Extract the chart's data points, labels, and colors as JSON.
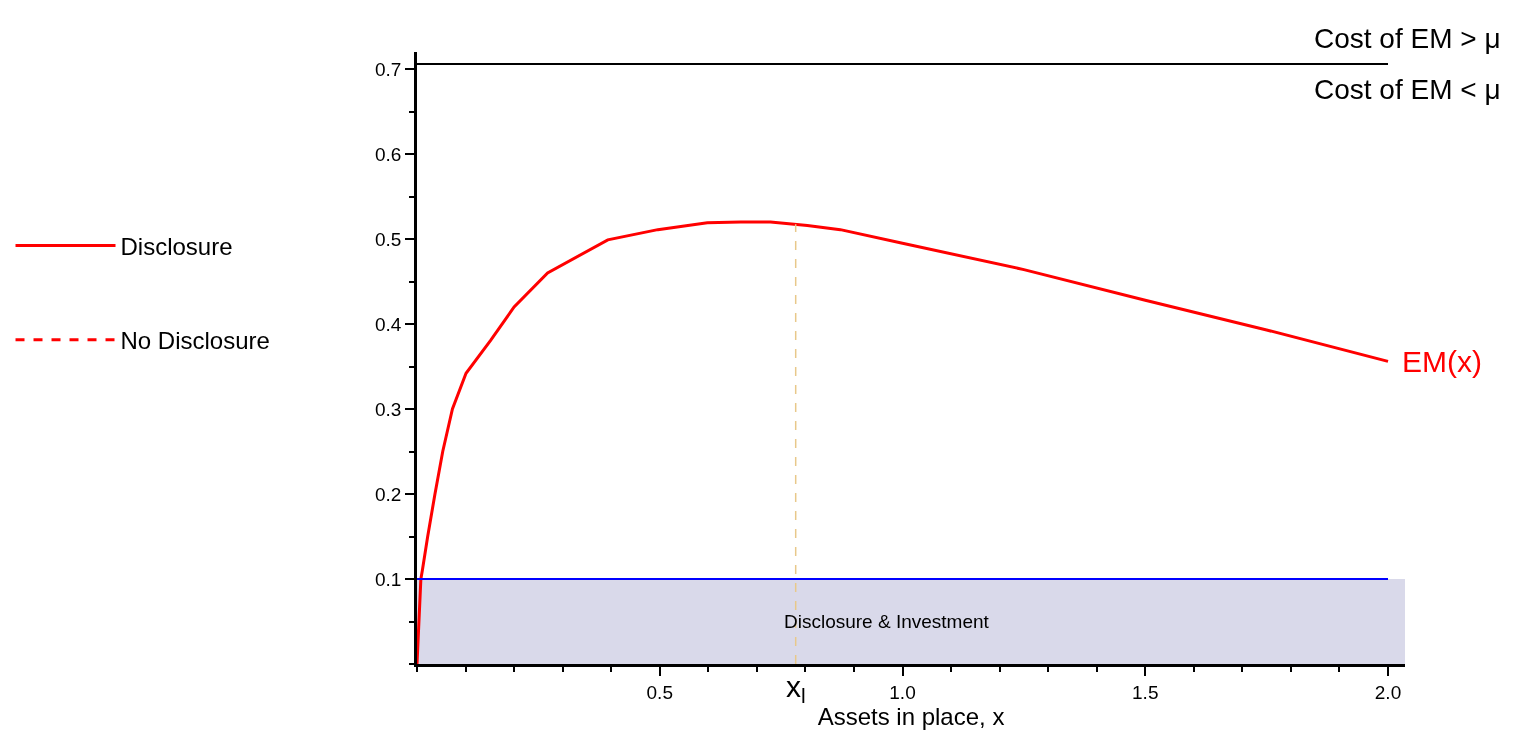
{
  "chart_data": {
    "type": "line",
    "xlabel": "Assets in place, x",
    "x": [
      0,
      0.008,
      0.011,
      0.022,
      0.037,
      0.053,
      0.073,
      0.101,
      0.152,
      0.2,
      0.269,
      0.393,
      0.496,
      0.598,
      0.667,
      0.728,
      0.804,
      0.872,
      1.0,
      1.25,
      1.5,
      1.75,
      2.0
    ],
    "series": [
      {
        "name": "Disclosure",
        "color": "#ff0000",
        "line_style": "solid",
        "values": [
          0,
          0.1,
          0.11,
          0.15,
          0.2,
          0.25,
          0.3,
          0.342,
          0.381,
          0.42,
          0.46,
          0.499,
          0.511,
          0.519,
          0.52,
          0.52,
          0.516,
          0.511,
          0.495,
          0.464,
          0.428,
          0.393,
          0.356
        ]
      },
      {
        "name": "No Disclosure",
        "color": "#ff0000",
        "line_style": "dashed",
        "values": [
          null,
          null,
          null,
          null,
          null,
          null,
          null,
          null,
          null,
          null,
          null,
          null,
          null,
          null,
          null,
          null,
          null,
          null,
          null,
          null,
          null,
          null,
          null
        ]
      }
    ],
    "xlim": [
      0,
      2.035
    ],
    "ylim": [
      0,
      0.72
    ],
    "xticks": [
      0.5,
      {
        "value": 1.0,
        "label": "1.0"
      },
      1.5,
      {
        "value": 2.0,
        "label": "2.0"
      }
    ],
    "yticks": [
      0.1,
      0.2,
      0.3,
      0.4,
      0.5,
      0.6,
      0.7
    ],
    "ref_lines": [
      {
        "axis": "y",
        "value": 0.706,
        "color": "#000000",
        "line_style": "solid"
      },
      {
        "axis": "y",
        "value": 0.1,
        "color": "#0000ff",
        "line_style": "solid"
      },
      {
        "axis": "x",
        "value": 0.78,
        "label": "x$_{l}$",
        "color": "#e8c88a",
        "line_style": "dashed"
      }
    ],
    "bands": [
      {
        "axis": "y",
        "from": 0,
        "to": 0.1,
        "label": "Disclosure & Investment",
        "color": "#d9d9ea"
      }
    ],
    "annotations": [
      "Cost of EM > μ",
      "Cost of EM < μ",
      {
        "text": "EM(x)",
        "x": 2.0,
        "y": 0.356
      }
    ],
    "grid": false,
    "legend": "left",
    "marker": "none"
  }
}
